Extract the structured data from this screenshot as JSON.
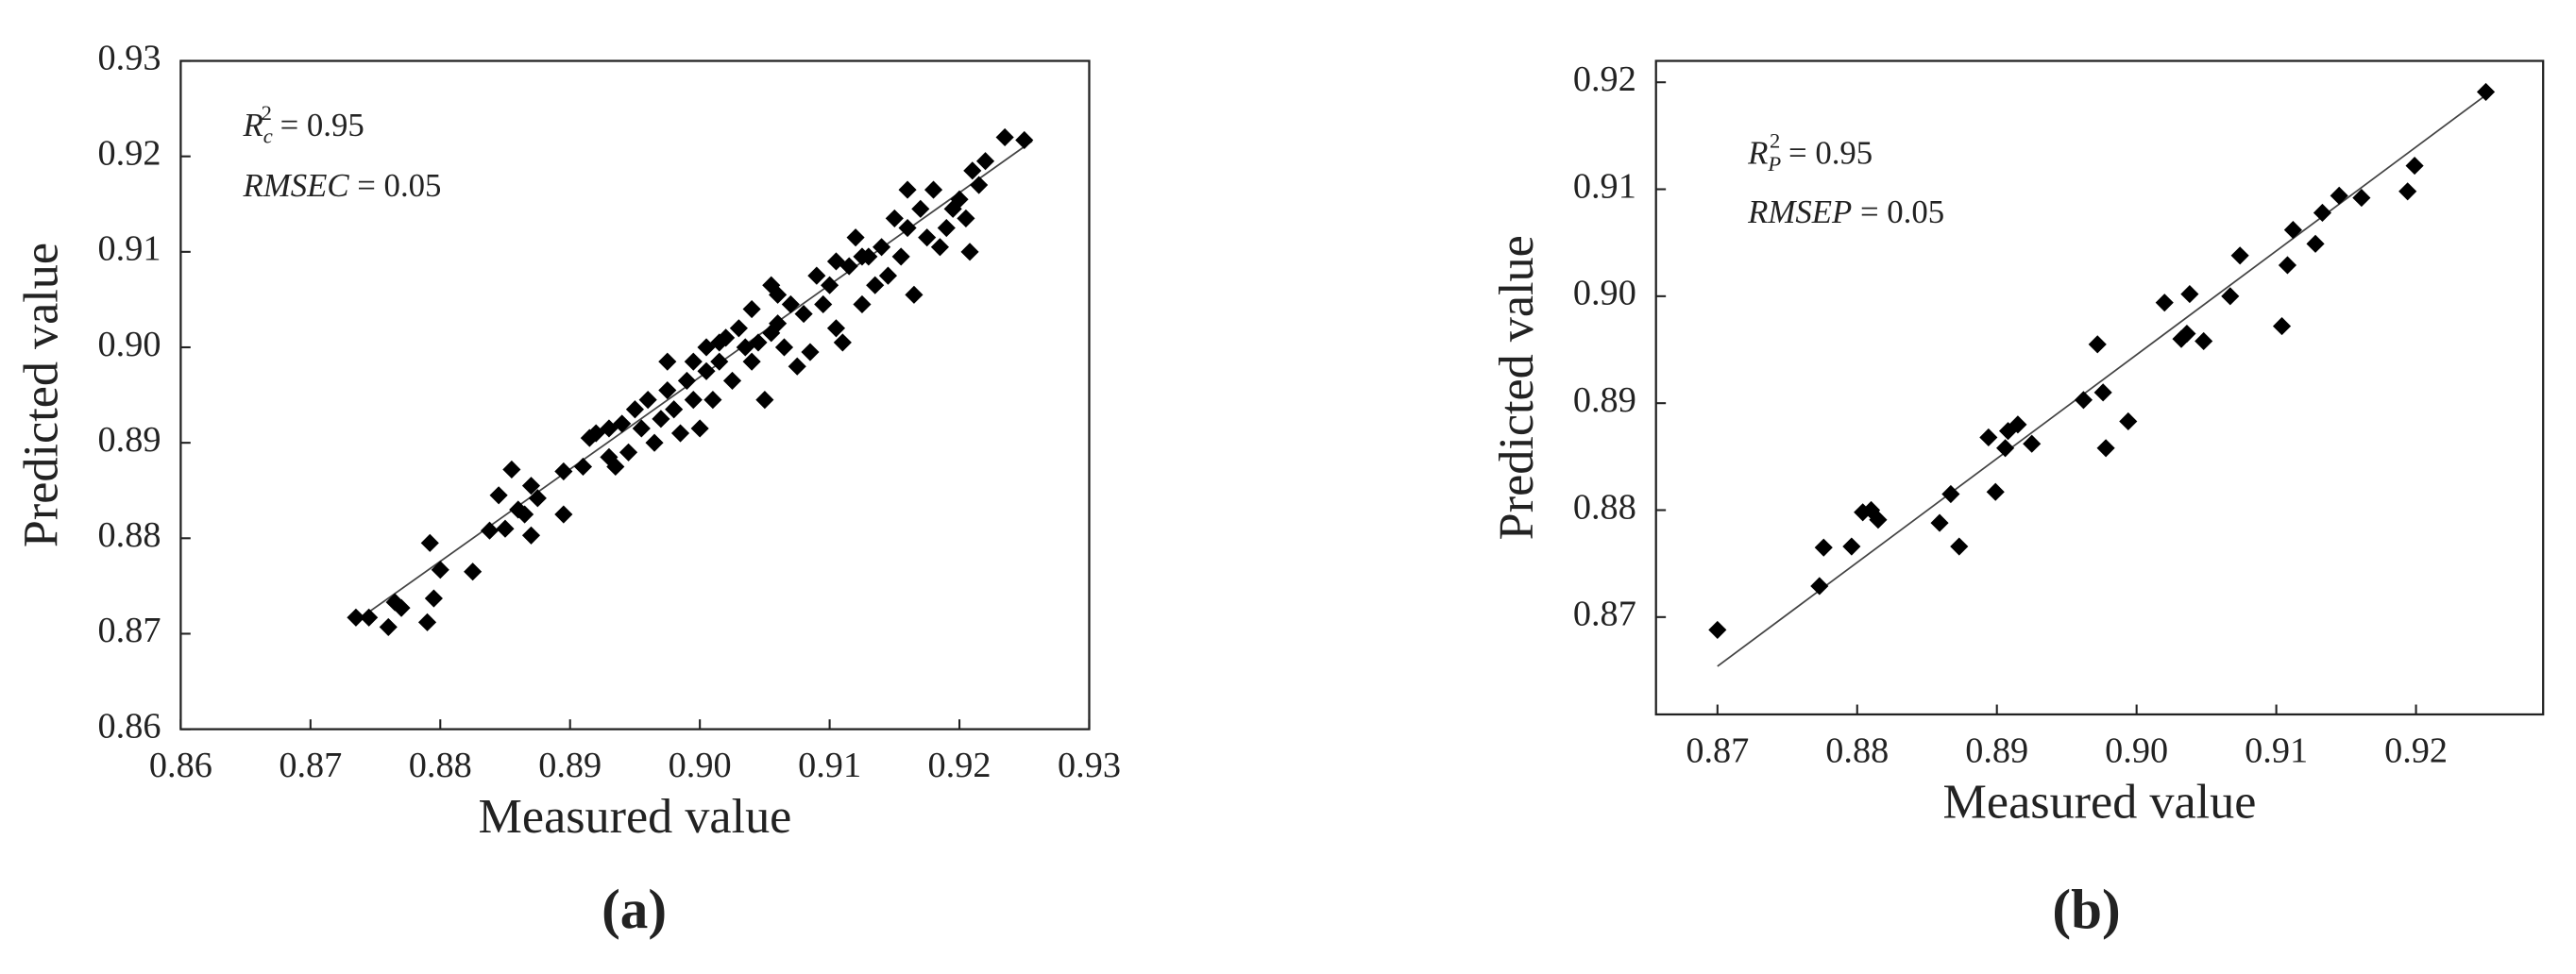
{
  "chart_data": [
    {
      "type": "scatter",
      "panel_label": "(a)",
      "xlabel": "Measured value",
      "ylabel": "Predicted value",
      "annotations": [
        {
          "base": "R",
          "sub": "c",
          "sup": "2",
          "text": " = 0.95"
        },
        {
          "base": "RMSEC",
          "text": " = 0.05"
        }
      ],
      "xlim": [
        0.86,
        0.93
      ],
      "ylim": [
        0.86,
        0.93
      ],
      "xticks": [
        0.86,
        0.87,
        0.88,
        0.89,
        {
          "value": 0.9,
          "label": "0.90"
        },
        0.91,
        0.92,
        0.93
      ],
      "yticks": [
        0.86,
        0.87,
        0.88,
        0.89,
        {
          "value": 0.9,
          "label": "0.90"
        },
        0.91,
        0.92,
        0.93
      ],
      "color": "#000000",
      "x": [
        0.8735,
        0.8745,
        0.876,
        0.8765,
        0.877,
        0.879,
        0.8792,
        0.8795,
        0.88,
        0.8825,
        0.8838,
        0.8845,
        0.885,
        0.8855,
        0.886,
        0.8865,
        0.887,
        0.887,
        0.8875,
        0.8895,
        0.8895,
        0.891,
        0.8915,
        0.892,
        0.893,
        0.8935,
        0.894,
        0.8945,
        0.895,
        0.8955,
        0.896,
        0.8965,
        0.897,
        0.8975,
        0.898,
        0.8985,
        0.899,
        0.8995,
        0.8995,
        0.9,
        0.9005,
        0.9005,
        0.901,
        0.9015,
        0.902,
        0.9025,
        0.903,
        0.9035,
        0.904,
        0.904,
        0.9045,
        0.905,
        0.9055,
        0.906,
        0.9065,
        0.907,
        0.9075,
        0.908,
        0.9085,
        0.909,
        0.9095,
        0.91,
        0.9105,
        0.911,
        0.9115,
        0.912,
        0.9125,
        0.913,
        0.9135,
        0.914,
        0.9145,
        0.915,
        0.9155,
        0.916,
        0.9165,
        0.917,
        0.9175,
        0.918,
        0.9185,
        0.919,
        0.9195,
        0.92,
        0.9205,
        0.9208,
        0.921,
        0.9215,
        0.922,
        0.9235,
        0.925,
        0.916,
        0.9125,
        0.9055,
        0.8975,
        0.893,
        0.906,
        0.9015,
        0.9105
      ],
      "y": [
        0.8717,
        0.8717,
        0.8707,
        0.8733,
        0.8727,
        0.8712,
        0.8795,
        0.8737,
        0.8767,
        0.8765,
        0.8808,
        0.8845,
        0.881,
        0.8872,
        0.883,
        0.8825,
        0.8855,
        0.8803,
        0.8842,
        0.8825,
        0.887,
        0.8875,
        0.8905,
        0.891,
        0.8915,
        0.8875,
        0.892,
        0.889,
        0.8935,
        0.8915,
        0.8945,
        0.89,
        0.8925,
        0.8955,
        0.8935,
        0.891,
        0.8965,
        0.8945,
        0.8985,
        0.8915,
        0.8975,
        0.9,
        0.8945,
        0.8985,
        0.901,
        0.8965,
        0.902,
        0.9,
        0.8985,
        0.904,
        0.9005,
        0.8945,
        0.9065,
        0.9025,
        0.9,
        0.9045,
        0.898,
        0.9035,
        0.8995,
        0.9075,
        0.9045,
        0.9065,
        0.902,
        0.9005,
        0.9085,
        0.9115,
        0.9045,
        0.9095,
        0.9065,
        0.9105,
        0.9075,
        0.9135,
        0.9095,
        0.9165,
        0.9055,
        0.9145,
        0.9115,
        0.9165,
        0.9105,
        0.9125,
        0.9145,
        0.9155,
        0.9135,
        0.91,
        0.9185,
        0.917,
        0.9195,
        0.922,
        0.9217,
        0.9125,
        0.9095,
        0.9015,
        0.8985,
        0.8885,
        0.9055,
        0.9005,
        0.909
      ],
      "fit_line": {
        "x": [
          0.8737,
          0.9256
        ],
        "y": [
          0.8715,
          0.9216
        ]
      }
    },
    {
      "type": "scatter",
      "panel_label": "(b)",
      "xlabel": "Measured value",
      "ylabel": "Predicted value",
      "annotations": [
        {
          "base": "R",
          "sub": "P",
          "sup": "2",
          "text": " = 0.95"
        },
        {
          "base": "RMSEP",
          "text": " = 0.05"
        }
      ],
      "xlim": [
        0.8656,
        0.9291
      ],
      "ylim": [
        0.8609,
        0.922
      ],
      "xticks": [
        0.87,
        0.88,
        0.89,
        {
          "value": 0.9,
          "label": "0.90"
        },
        0.91,
        0.92
      ],
      "yticks": [
        0.87,
        0.88,
        0.89,
        {
          "value": 0.9,
          "label": "0.90"
        },
        0.91,
        0.92
      ],
      "color": "#000000",
      "x": [
        0.87,
        0.8773,
        0.8776,
        0.8796,
        0.8804,
        0.881,
        0.8815,
        0.8859,
        0.8867,
        0.8873,
        0.8894,
        0.8899,
        0.8906,
        0.8908,
        0.8915,
        0.8925,
        0.8962,
        0.8972,
        0.8976,
        0.8978,
        0.8994,
        0.902,
        0.9032,
        0.9038,
        0.9036,
        0.9048,
        0.9067,
        0.9074,
        0.9104,
        0.9108,
        0.9112,
        0.9128,
        0.9133,
        0.9145,
        0.9161,
        0.9194,
        0.9199,
        0.925
      ],
      "y": [
        0.8688,
        0.8729,
        0.8765,
        0.8766,
        0.8798,
        0.88,
        0.8791,
        0.8788,
        0.8815,
        0.8766,
        0.8868,
        0.8817,
        0.8858,
        0.8874,
        0.888,
        0.8862,
        0.8903,
        0.8955,
        0.891,
        0.8858,
        0.8883,
        0.8994,
        0.896,
        0.9002,
        0.8965,
        0.8958,
        0.9,
        0.9038,
        0.8972,
        0.9029,
        0.9062,
        0.9049,
        0.9078,
        0.9094,
        0.9092,
        0.9098,
        0.9122,
        0.9191
      ],
      "fit_line": {
        "x": [
          0.87,
          0.9251
        ],
        "y": [
          0.8654,
          0.9189
        ]
      }
    }
  ]
}
